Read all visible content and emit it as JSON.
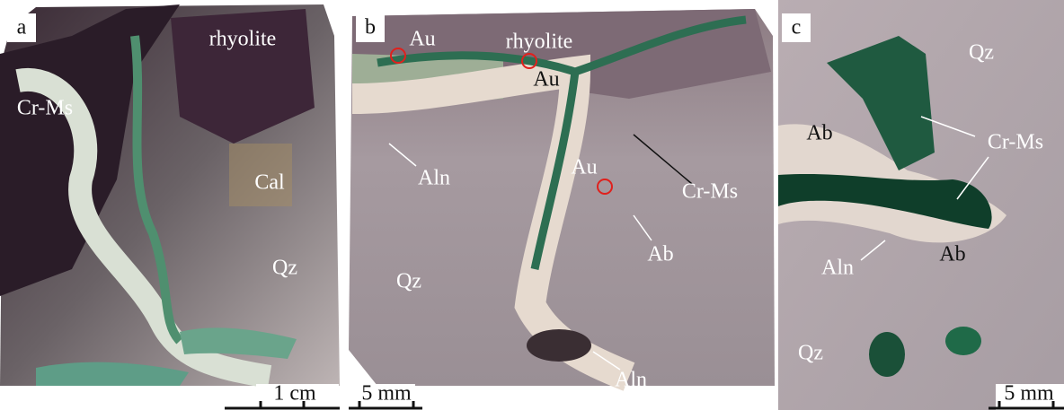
{
  "panels": [
    {
      "letter": "a",
      "labels": [
        "rhyolite",
        "Cr-Ms",
        "Cal",
        "Qz"
      ],
      "scale": "1 cm"
    },
    {
      "letter": "b",
      "labels": [
        "Au",
        "rhyolite",
        "Au",
        "Aln",
        "Au",
        "Cr-Ms",
        "Ab",
        "Qz",
        "Aln"
      ],
      "scale": "5 mm"
    },
    {
      "letter": "c",
      "labels": [
        "Qz",
        "Ab",
        "Cr-Ms",
        "Ab",
        "Aln",
        "Qz"
      ],
      "scale": "5 mm"
    }
  ]
}
